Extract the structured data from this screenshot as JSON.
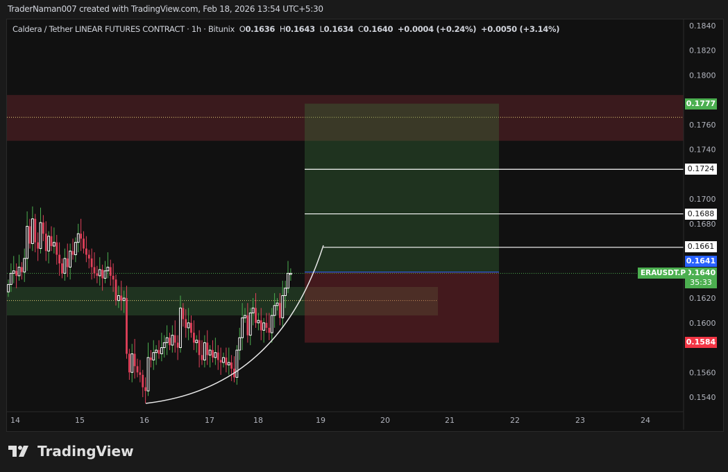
{
  "credit": "TraderNaman007 created with TradingView.com, Feb 18, 2026 13:54 UTC+5:30",
  "legend": {
    "symbol": "Caldera / Tether LINEAR FUTURES CONTRACT · 1h · Bitunix",
    "o_label": "O",
    "o": "0.1636",
    "h_label": "H",
    "h": "0.1643",
    "l_label": "L",
    "l": "0.1634",
    "c_label": "C",
    "c": "0.1640",
    "change": "+0.0004 (+0.24%)",
    "change2": "+0.0050 (+3.14%)"
  },
  "colors": {
    "up": "#ffffff",
    "up_wick": "#4caf50",
    "down": "#e0405a",
    "bg": "#111111",
    "accent_green": "#4caf50",
    "accent_red": "#f23645",
    "accent_blue": "#2962ff"
  },
  "price_axis": {
    "min": 0.153,
    "max": 0.185,
    "ticks": [
      "0.1840",
      "0.1820",
      "0.1800",
      "0.1760",
      "0.1740",
      "0.1700",
      "0.1680",
      "0.1620",
      "0.1600",
      "0.1560",
      "0.1540"
    ]
  },
  "time_axis": {
    "labels": [
      "14",
      "15",
      "16",
      "17",
      "18",
      "19",
      "20",
      "21",
      "22",
      "23",
      "24"
    ]
  },
  "price_tags": {
    "target": "0.1777",
    "level1": "0.1724",
    "level2": "0.1688",
    "level3": "0.1661",
    "entry": "0.1641",
    "last": "0.1640",
    "countdown": "35:33",
    "stop": "0.1584",
    "symbol_tag": "ERAUSDT.P"
  },
  "zones": {
    "resistance": {
      "top": 0.1784,
      "bottom": 0.1747,
      "mid": 0.1766
    },
    "support": {
      "top": 0.1629,
      "bottom": 0.1606,
      "mid": 0.1618
    },
    "long_position": {
      "target": 0.1777,
      "entry": 0.1641,
      "stop": 0.1584
    }
  },
  "candles_close": [
    0.1631,
    0.164,
    0.1642,
    0.1638,
    0.1645,
    0.1641,
    0.1652,
    0.1678,
    0.1664,
    0.1684,
    0.1665,
    0.166,
    0.1681,
    0.1672,
    0.1658,
    0.167,
    0.1662,
    0.1665,
    0.1655,
    0.1648,
    0.164,
    0.1652,
    0.1645,
    0.1658,
    0.1655,
    0.1665,
    0.1672,
    0.1668,
    0.166,
    0.1655,
    0.1652,
    0.1645,
    0.164,
    0.1638,
    0.1643,
    0.1636,
    0.1642,
    0.1645,
    0.1638,
    0.1635,
    0.1618,
    0.1622,
    0.1618,
    0.162,
    0.1575,
    0.156,
    0.1575,
    0.1565,
    0.156,
    0.1558,
    0.1548,
    0.1545,
    0.1572,
    0.157,
    0.1576,
    0.1578,
    0.1575,
    0.158,
    0.1584,
    0.1588,
    0.1582,
    0.159,
    0.1584,
    0.158,
    0.1612,
    0.1603,
    0.1596,
    0.16,
    0.1592,
    0.1584,
    0.1586,
    0.1574,
    0.157,
    0.1584,
    0.1574,
    0.1578,
    0.1572,
    0.1576,
    0.157,
    0.1568,
    0.1572,
    0.1566,
    0.1568,
    0.1563,
    0.1556,
    0.1578,
    0.1588,
    0.1604,
    0.1606,
    0.159,
    0.1608,
    0.1612,
    0.16,
    0.1602,
    0.1594,
    0.16,
    0.1596,
    0.1592,
    0.1606,
    0.1614,
    0.1616,
    0.1604,
    0.1622,
    0.1628,
    0.164,
    0.164
  ],
  "footer": {
    "brand": "TradingView"
  }
}
